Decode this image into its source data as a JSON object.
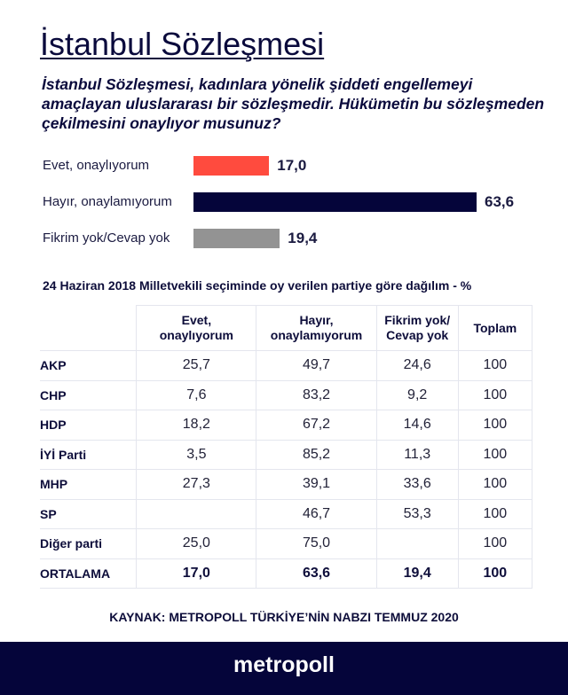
{
  "title": "İstanbul Sözleşmesi",
  "question": "İstanbul Sözleşmesi, kadınlara yönelik şiddeti engellemeyi amaçlayan uluslararası bir sözleşmedir. Hükümetin bu sözleşmeden çekilmesini onaylıyor musunuz?",
  "colors": {
    "evet": "#ff4b3e",
    "hayir": "#05053a",
    "fikrim_yok": "#939393",
    "footer": "#05053a"
  },
  "chart_data": {
    "type": "bar",
    "orientation": "horizontal",
    "title": "İstanbul Sözleşmesi",
    "categories": [
      "Evet, onaylıyorum",
      "Hayır, onaylamıyorum",
      "Fikrim yok/Cevap yok"
    ],
    "values": [
      17.0,
      63.6,
      19.4
    ],
    "value_labels": [
      "17,0",
      "63,6",
      "19,4"
    ],
    "xlabel": "",
    "ylabel": "",
    "xlim": [
      0,
      65
    ]
  },
  "table": {
    "subtitle": "24 Haziran 2018 Milletvekili seçiminde oy verilen partiye göre dağılım - %",
    "headers": [
      "",
      "Evet, onaylıyorum",
      "Hayır, onaylamıyorum",
      "Fikrim yok/ Cevap yok",
      "Toplam"
    ],
    "header_lines": [
      [
        "",
        ""
      ],
      [
        "Evet,",
        "onaylıyorum"
      ],
      [
        "Hayır,",
        "onaylamıyorum"
      ],
      [
        "Fikrim yok/",
        "Cevap yok"
      ],
      [
        "Toplam",
        ""
      ]
    ],
    "rows": [
      [
        "AKP",
        "25,7",
        "49,7",
        "24,6",
        "100"
      ],
      [
        "CHP",
        "7,6",
        "83,2",
        "9,2",
        "100"
      ],
      [
        "HDP",
        "18,2",
        "67,2",
        "14,6",
        "100"
      ],
      [
        "İYİ Parti",
        "3,5",
        "85,2",
        "11,3",
        "100"
      ],
      [
        "MHP",
        "27,3",
        "39,1",
        "33,6",
        "100"
      ],
      [
        "SP",
        "",
        "46,7",
        "53,3",
        "100"
      ],
      [
        "Diğer parti",
        "25,0",
        "75,0",
        "",
        "100"
      ],
      [
        "ORTALAMA",
        "17,0",
        "63,6",
        "19,4",
        "100"
      ]
    ]
  },
  "source": "KAYNAK: METROPOLL TÜRKİYE’NİN NABZI TEMMUZ 2020",
  "logo": "metropoll"
}
